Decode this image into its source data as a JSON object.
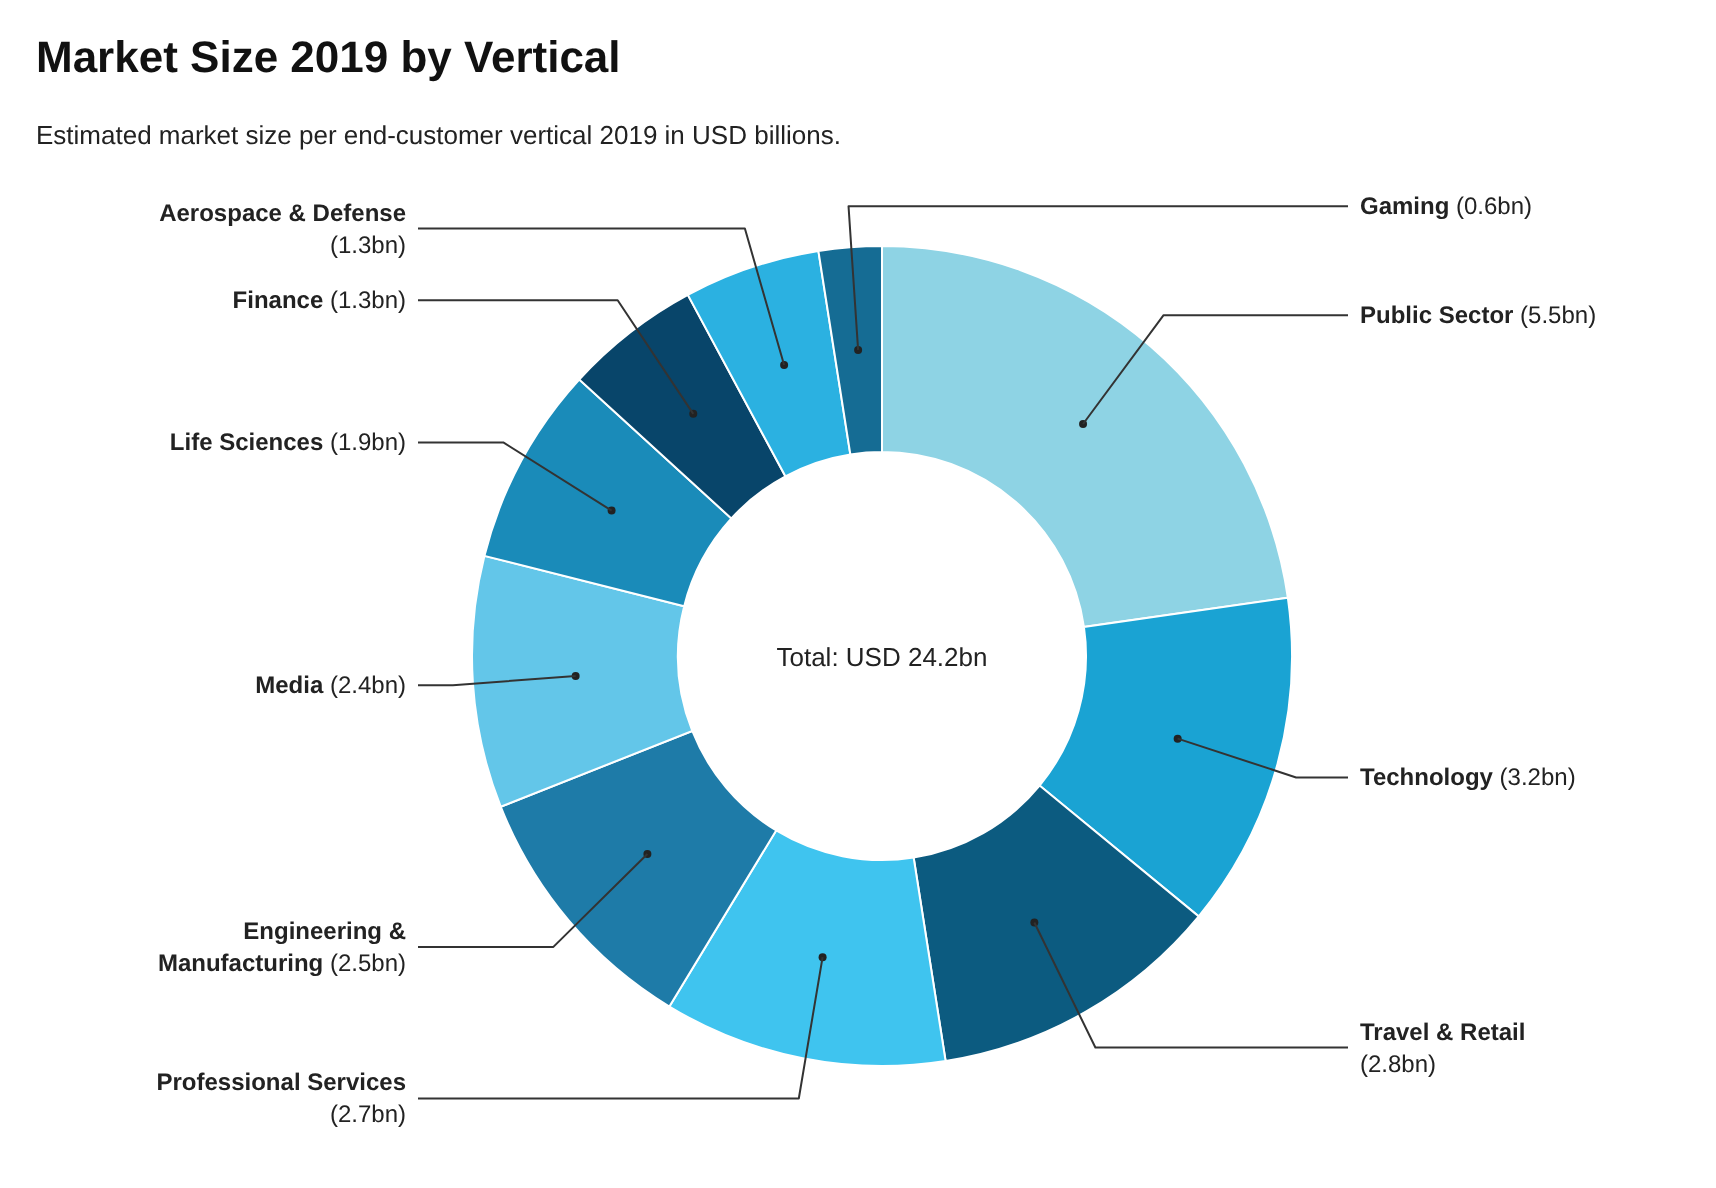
{
  "chart_data": {
    "type": "donut",
    "title": "Market Size 2019 by Vertical",
    "subtitle": "Estimated market size per end-customer vertical  2019 in USD billions.",
    "categories": [
      "Public Sector",
      "Technology",
      "Travel & Retail",
      "Professional Services",
      "Engineering & Manufacturing",
      "Media",
      "Life Sciences",
      "Finance",
      "Aerospace & Defense",
      "Gaming"
    ],
    "values": [
      5.5,
      3.2,
      2.8,
      2.7,
      2.5,
      2.4,
      1.9,
      1.3,
      1.3,
      0.6
    ],
    "value_labels": [
      "(5.5bn)",
      "(3.2bn)",
      "(2.8bn)",
      "(2.7bn)",
      "(2.5bn)",
      "(2.4bn)",
      "(1.9bn)",
      "(1.3bn)",
      "(1.3bn)",
      "(0.6bn)"
    ],
    "colors": [
      "#8ed3e4",
      "#1aa3d3",
      "#0c5b80",
      "#3fc4ef",
      "#1e7ba8",
      "#63c6e9",
      "#1a8bb9",
      "#08456a",
      "#2bb1e1",
      "#156c94"
    ],
    "annotations": [
      "Total: USD 24.2bn"
    ]
  }
}
